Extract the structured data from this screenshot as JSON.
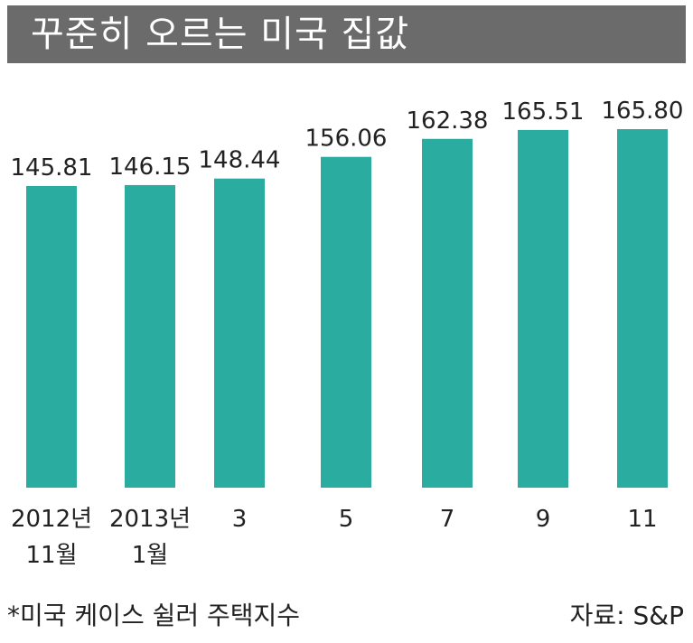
{
  "chart_data": {
    "type": "bar",
    "title": "꾸준히 오르는 미국 집값",
    "categories": [
      [
        "2012년",
        "11월"
      ],
      [
        "2013년",
        "1월"
      ],
      [
        "3"
      ],
      [
        "5"
      ],
      [
        "7"
      ],
      [
        "9"
      ],
      [
        "11"
      ]
    ],
    "values": [
      145.81,
      146.15,
      148.44,
      156.06,
      162.38,
      165.51,
      165.8
    ],
    "value_labels": [
      "145.81",
      "146.15",
      "148.44",
      "156.06",
      "162.38",
      "165.51",
      "165.80"
    ],
    "bar_color": "#2aada0",
    "note": "*미국 케이스 쉴러 주택지수",
    "source": "자료: S&P"
  }
}
